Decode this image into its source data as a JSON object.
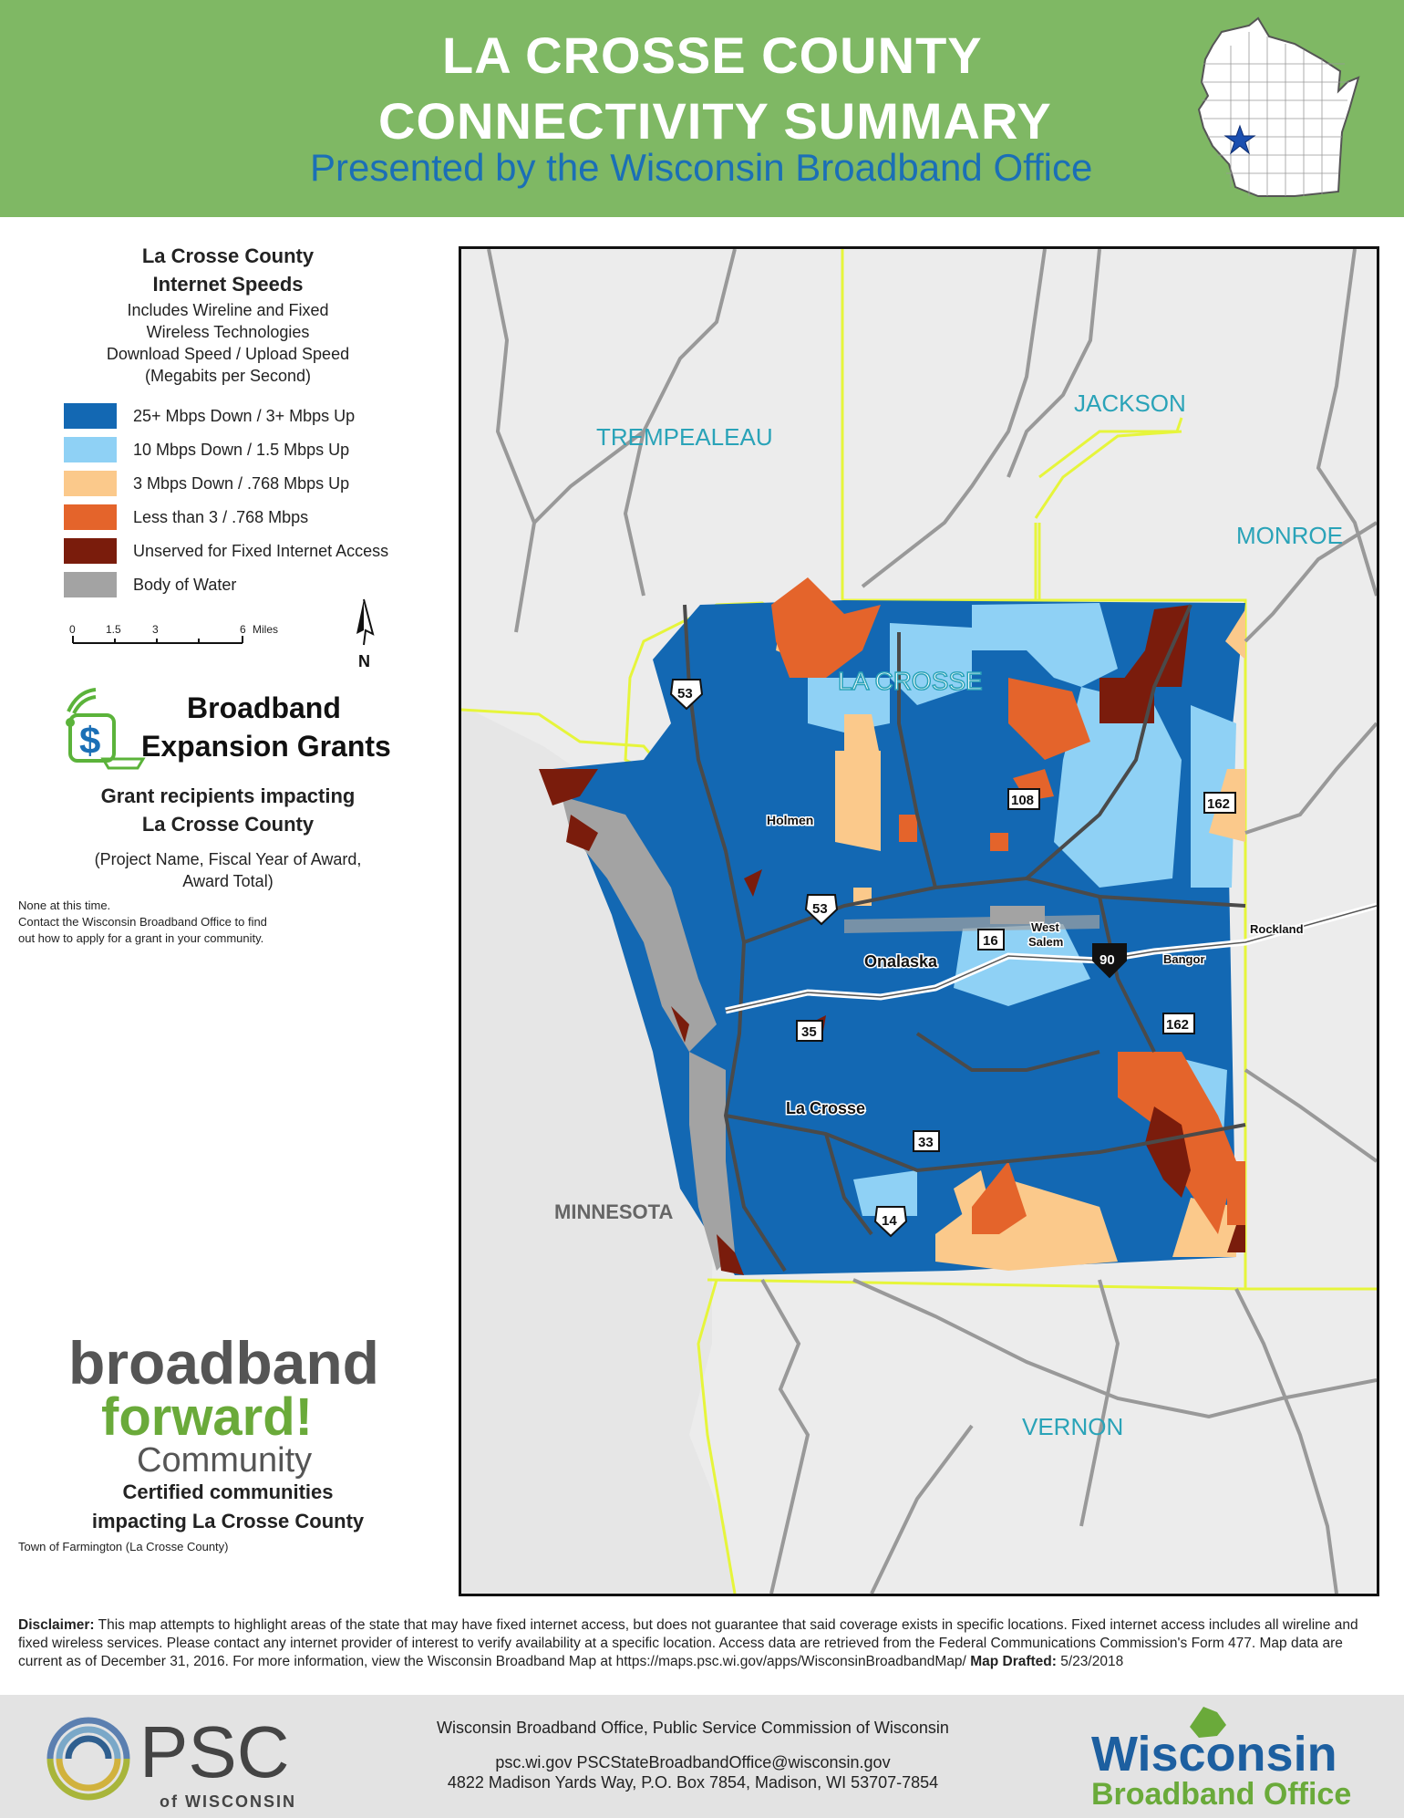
{
  "header": {
    "title_line1": "LA CROSSE COUNTY",
    "title_line2": "CONNECTIVITY SUMMARY",
    "subtitle": "Presented by the Wisconsin Broadband Office"
  },
  "legend": {
    "title_line1": "La Crosse County",
    "title_line2": "Internet Speeds",
    "sub_line1": "Includes Wireline and Fixed",
    "sub_line2": "Wireless Technologies",
    "sub_line3": "Download Speed / Upload Speed",
    "sub_line4": "(Megabits per Second)",
    "items": [
      {
        "label": "25+ Mbps Down / 3+ Mbps Up",
        "color": "#1368b3"
      },
      {
        "label": "10 Mbps Down / 1.5 Mbps Up",
        "color": "#8fd1f5"
      },
      {
        "label": "3 Mbps Down / .768 Mbps Up",
        "color": "#fbc98b"
      },
      {
        "label": "Less than 3  / .768 Mbps",
        "color": "#e4642b"
      },
      {
        "label": "Unserved for Fixed Internet Access",
        "color": "#7a1c0c"
      },
      {
        "label": "Body of Water",
        "color": "#a3a3a3"
      }
    ],
    "scale_labels": [
      "0",
      "1.5",
      "3",
      "6",
      "Miles"
    ],
    "north_label": "N"
  },
  "grants": {
    "title_line1": "Broadband",
    "title_line2": "Expansion Grants",
    "head_line1": "Grant recipients impacting",
    "head_line2": "La Crosse County",
    "sub_line1": "(Project Name, Fiscal Year of Award,",
    "sub_line2": "Award Total)",
    "note_line1": "None at this time.",
    "note_line2": "Contact the Wisconsin Broadband Office to find",
    "note_line3": "out how to apply for a grant in your community."
  },
  "forward": {
    "logo_word1": "broadband",
    "logo_word2": "forward!",
    "logo_word3": "Community",
    "head_line1": "Certified communities",
    "head_line2": "impacting La Crosse County",
    "item": "Town of Farmington (La Crosse County)"
  },
  "map": {
    "county_labels": {
      "trempealeau": "TREMPEALEAU",
      "jackson": "JACKSON",
      "monroe": "MONROE",
      "lacrosse": "LA CROSSE",
      "minnesota": "MINNESOTA",
      "vernon": "VERNON"
    },
    "places": {
      "holmen": "Holmen",
      "onalaska": "Onalaska",
      "lacrosse_city": "La Crosse",
      "west": "West",
      "salem": "Salem",
      "bangor": "Bangor",
      "rockland": "Rockland"
    },
    "routes": {
      "us53a": "53",
      "us53b": "53",
      "wi108": "108",
      "wi162a": "162",
      "wi162b": "162",
      "wi16": "16",
      "i90": "90",
      "wi35": "35",
      "wi33": "33",
      "us14": "14"
    }
  },
  "disclaimer": {
    "label": "Disclaimer:",
    "text": "This map attempts to highlight areas of the state that may have fixed internet access, but does not guarantee that said coverage exists in specific locations. Fixed internet access includes all wireline and fixed wireless services. Please contact any internet provider of interest to verify availability at a specific location. Access data are retrieved from the Federal Communications Commission's Form 477. Map data are current as of December 31, 2016. For more information, view the Wisconsin Broadband Map at https://maps.psc.wi.gov/apps/WisconsinBroadbandMap/",
    "drafted_label": "Map Drafted:",
    "drafted_date": "5/23/2018"
  },
  "footer": {
    "psc_big": "PSC",
    "psc_small": "of WISCONSIN",
    "line1": "Wisconsin Broadband Office, Public Service Commission of Wisconsin",
    "line2": "psc.wi.gov   PSCStateBroadbandOffice@wisconsin.gov",
    "line3": "4822 Madison Yards Way, P.O. Box 7854, Madison, WI 53707-7854",
    "wbo_line1": "Wisconsin",
    "wbo_line2": "Broadband Office"
  }
}
